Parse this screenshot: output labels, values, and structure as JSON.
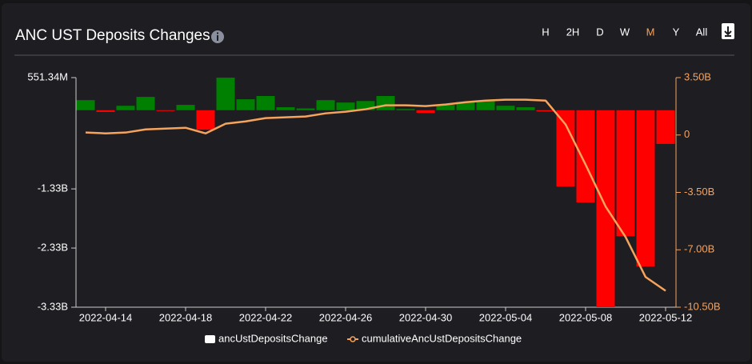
{
  "chart_data": {
    "type": "bar",
    "title": "ANC UST Deposits Changes",
    "categories": [
      null,
      "2022-04-14",
      null,
      null,
      null,
      "2022-04-18",
      null,
      null,
      null,
      "2022-04-22",
      null,
      null,
      null,
      "2022-04-26",
      null,
      null,
      null,
      "2022-04-30",
      null,
      null,
      null,
      "2022-05-04",
      null,
      null,
      null,
      "2022-05-08",
      null,
      null,
      null,
      "2022-05-12"
    ],
    "series": [
      {
        "name": "ancUstDepositsChange",
        "type": "bar",
        "color": "#ffffff",
        "positive_color": "#008000",
        "negative_color": "#ff0000",
        "values": [
          170000000,
          -30000000,
          75000000,
          225000000,
          -10000000,
          90000000,
          -330000000,
          550000000,
          185000000,
          240000000,
          50000000,
          30000000,
          170000000,
          130000000,
          155000000,
          240000000,
          20000000,
          -45000000,
          90000000,
          140000000,
          155000000,
          75000000,
          50000000,
          -20000000,
          -1290000000,
          -1560000000,
          -3330000000,
          -2130000000,
          -2640000000,
          -570000000
        ]
      },
      {
        "name": "cumulativeAncUstDepositsChange",
        "type": "line",
        "axis": "y2",
        "color": "#f6a35c",
        "values": [
          150000000,
          100000000,
          150000000,
          340000000,
          390000000,
          440000000,
          100000000,
          690000000,
          830000000,
          1030000000,
          1080000000,
          1130000000,
          1320000000,
          1420000000,
          1570000000,
          1810000000,
          1810000000,
          1760000000,
          1860000000,
          2000000000,
          2100000000,
          2150000000,
          2150000000,
          2100000000,
          640000000,
          -1810000000,
          -4360000000,
          -6220000000,
          -8660000000,
          -9500000000
        ]
      }
    ],
    "ylim": [
      -3330000000,
      551340000
    ],
    "yticks": [
      {
        "value": 551340000,
        "label": "551.34M"
      },
      {
        "value": -1330000000,
        "label": "-1.33B"
      },
      {
        "value": -2330000000,
        "label": "-2.33B"
      },
      {
        "value": -3330000000,
        "label": "-3.33B"
      }
    ],
    "y2lim": [
      -10500000000,
      3500000000
    ],
    "y2ticks": [
      {
        "value": 3500000000,
        "label": "3.50B"
      },
      0,
      {
        "value": -3500000000,
        "label": "-3.50B"
      },
      {
        "value": -7000000000,
        "label": "-7.00B"
      },
      {
        "value": -10500000000,
        "label": "-10.50B"
      }
    ],
    "y2_color": "#f6a35c",
    "grid": false
  },
  "controls": {
    "ranges": [
      "H",
      "2H",
      "D",
      "W",
      "M",
      "Y",
      "All"
    ],
    "active": "M",
    "active_color": "#f6a35c"
  }
}
